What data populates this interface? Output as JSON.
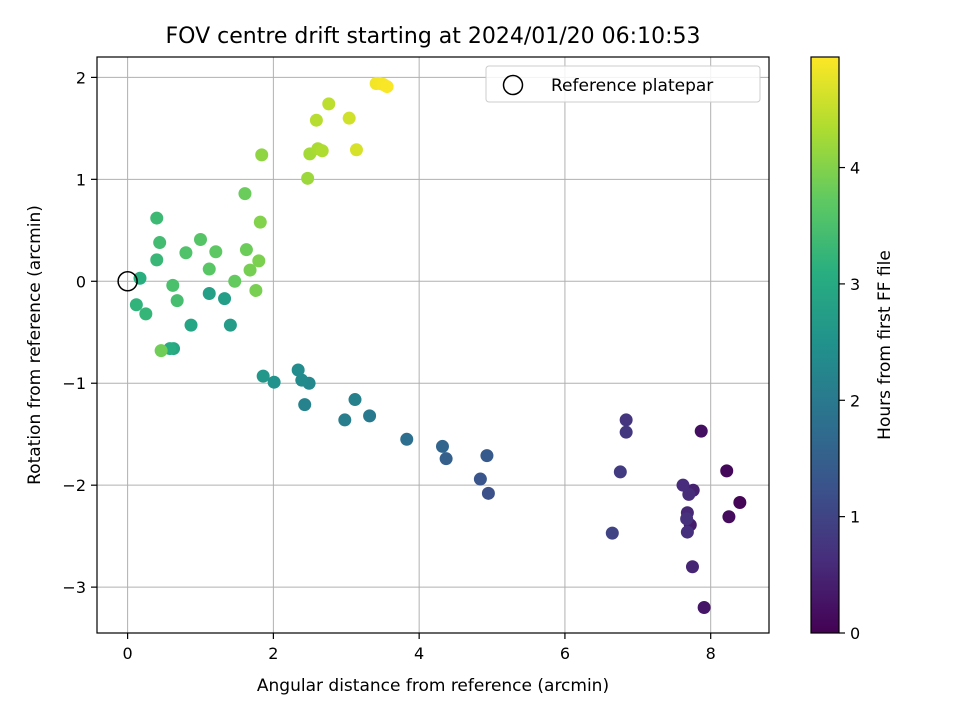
{
  "chart_data": {
    "type": "scatter",
    "title": "FOV centre drift starting at 2024/01/20 06:10:53",
    "xlabel": "Angular distance from reference (arcmin)",
    "ylabel": "Rotation from reference (arcmin)",
    "xlim": [
      -0.42,
      8.8
    ],
    "ylim": [
      -3.45,
      2.2
    ],
    "x_ticks": [
      0,
      2,
      4,
      6,
      8
    ],
    "y_ticks": [
      2,
      1,
      0,
      -1,
      -2,
      -3
    ],
    "x_tick_labels": [
      "0",
      "2",
      "4",
      "6",
      "8"
    ],
    "y_tick_labels": [
      "2",
      "1",
      "0",
      "−1",
      "−2",
      "−3"
    ],
    "grid": true,
    "colormap": "viridis",
    "colorbar": {
      "label": "Hours from first FF file",
      "range": [
        0,
        4.95
      ],
      "ticks": [
        0,
        1,
        2,
        3,
        4
      ],
      "tick_labels": [
        "0",
        "1",
        "2",
        "3",
        "4"
      ]
    },
    "legend": {
      "placement": "top-right",
      "entries": [
        {
          "label": "Reference platepar",
          "marker": "hollow-circle"
        }
      ]
    },
    "reference_point": {
      "x": 0,
      "y": 0
    },
    "points": [
      {
        "x": 8.4,
        "y": -2.17,
        "t": 0.05
      },
      {
        "x": 8.22,
        "y": -1.86,
        "t": 0.1
      },
      {
        "x": 8.25,
        "y": -2.31,
        "t": 0.15
      },
      {
        "x": 7.87,
        "y": -1.47,
        "t": 0.2
      },
      {
        "x": 7.91,
        "y": -3.2,
        "t": 0.3
      },
      {
        "x": 7.72,
        "y": -2.39,
        "t": 0.4
      },
      {
        "x": 7.76,
        "y": -2.05,
        "t": 0.45
      },
      {
        "x": 7.75,
        "y": -2.8,
        "t": 0.5
      },
      {
        "x": 7.68,
        "y": -2.27,
        "t": 0.55
      },
      {
        "x": 7.7,
        "y": -2.09,
        "t": 0.6
      },
      {
        "x": 7.62,
        "y": -2.0,
        "t": 0.62
      },
      {
        "x": 7.68,
        "y": -2.46,
        "t": 0.66
      },
      {
        "x": 7.67,
        "y": -2.33,
        "t": 0.68
      },
      {
        "x": 6.84,
        "y": -1.36,
        "t": 0.75
      },
      {
        "x": 6.84,
        "y": -1.48,
        "t": 0.8
      },
      {
        "x": 6.76,
        "y": -1.87,
        "t": 0.85
      },
      {
        "x": 6.65,
        "y": -2.47,
        "t": 1.0
      },
      {
        "x": 4.95,
        "y": -2.08,
        "t": 1.2
      },
      {
        "x": 4.84,
        "y": -1.94,
        "t": 1.3
      },
      {
        "x": 4.93,
        "y": -1.71,
        "t": 1.4
      },
      {
        "x": 4.37,
        "y": -1.74,
        "t": 1.5
      },
      {
        "x": 4.32,
        "y": -1.62,
        "t": 1.6
      },
      {
        "x": 3.83,
        "y": -1.55,
        "t": 1.8
      },
      {
        "x": 3.32,
        "y": -1.32,
        "t": 2.0
      },
      {
        "x": 2.98,
        "y": -1.36,
        "t": 2.1
      },
      {
        "x": 3.12,
        "y": -1.16,
        "t": 2.15
      },
      {
        "x": 2.43,
        "y": -1.21,
        "t": 2.2
      },
      {
        "x": 2.49,
        "y": -1.0,
        "t": 2.3
      },
      {
        "x": 2.39,
        "y": -0.97,
        "t": 2.35
      },
      {
        "x": 2.34,
        "y": -0.87,
        "t": 2.4
      },
      {
        "x": 2.01,
        "y": -0.99,
        "t": 2.5
      },
      {
        "x": 1.86,
        "y": -0.93,
        "t": 2.6
      },
      {
        "x": 1.41,
        "y": -0.43,
        "t": 2.7
      },
      {
        "x": 1.33,
        "y": -0.17,
        "t": 2.75
      },
      {
        "x": 1.12,
        "y": -0.12,
        "t": 2.8
      },
      {
        "x": 0.87,
        "y": -0.43,
        "t": 2.9
      },
      {
        "x": 0.63,
        "y": -0.66,
        "t": 2.95
      },
      {
        "x": 0.58,
        "y": -0.66,
        "t": 3.05
      },
      {
        "x": 0.17,
        "y": 0.03,
        "t": 3.1
      },
      {
        "x": 0.12,
        "y": -0.23,
        "t": 3.2
      },
      {
        "x": 0.25,
        "y": -0.32,
        "t": 3.25
      },
      {
        "x": 0.4,
        "y": 0.21,
        "t": 3.3
      },
      {
        "x": 0.4,
        "y": 0.62,
        "t": 3.35
      },
      {
        "x": 0.44,
        "y": 0.38,
        "t": 3.4
      },
      {
        "x": 0.68,
        "y": -0.19,
        "t": 3.45
      },
      {
        "x": 0.62,
        "y": -0.04,
        "t": 3.5
      },
      {
        "x": 0.8,
        "y": 0.28,
        "t": 3.55
      },
      {
        "x": 1.0,
        "y": 0.41,
        "t": 3.6
      },
      {
        "x": 1.12,
        "y": 0.12,
        "t": 3.65
      },
      {
        "x": 1.21,
        "y": 0.29,
        "t": 3.7
      },
      {
        "x": 1.47,
        "y": 0.0,
        "t": 3.75
      },
      {
        "x": 1.61,
        "y": 0.86,
        "t": 3.8
      },
      {
        "x": 1.63,
        "y": 0.31,
        "t": 3.82
      },
      {
        "x": 0.46,
        "y": -0.68,
        "t": 3.85
      },
      {
        "x": 1.68,
        "y": 0.11,
        "t": 3.9
      },
      {
        "x": 1.76,
        "y": -0.09,
        "t": 3.92
      },
      {
        "x": 1.8,
        "y": 0.2,
        "t": 3.95
      },
      {
        "x": 1.82,
        "y": 0.58,
        "t": 4.0
      },
      {
        "x": 1.84,
        "y": 1.24,
        "t": 4.1
      },
      {
        "x": 2.47,
        "y": 1.01,
        "t": 4.2
      },
      {
        "x": 2.5,
        "y": 1.25,
        "t": 4.25
      },
      {
        "x": 2.61,
        "y": 1.3,
        "t": 4.3
      },
      {
        "x": 2.67,
        "y": 1.28,
        "t": 4.35
      },
      {
        "x": 2.59,
        "y": 1.58,
        "t": 4.4
      },
      {
        "x": 2.76,
        "y": 1.74,
        "t": 4.45
      },
      {
        "x": 3.04,
        "y": 1.6,
        "t": 4.6
      },
      {
        "x": 3.14,
        "y": 1.29,
        "t": 4.65
      },
      {
        "x": 3.41,
        "y": 1.94,
        "t": 4.85
      },
      {
        "x": 3.46,
        "y": 1.94,
        "t": 4.88
      },
      {
        "x": 3.51,
        "y": 1.93,
        "t": 4.9
      },
      {
        "x": 3.56,
        "y": 1.91,
        "t": 4.92
      }
    ]
  }
}
